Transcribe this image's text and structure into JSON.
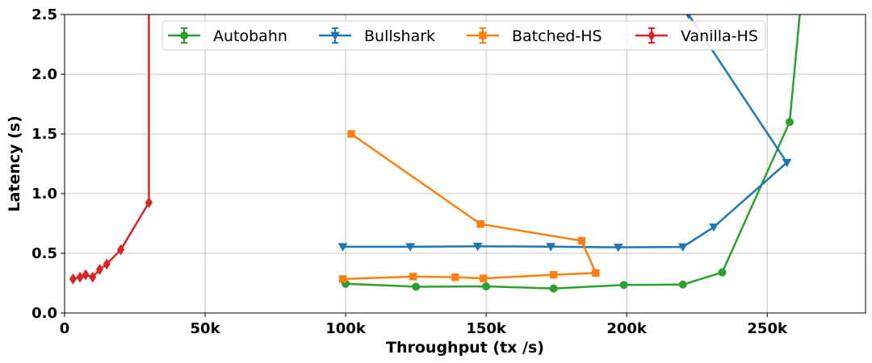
{
  "chart_data": {
    "type": "line",
    "xlabel": "Throughput (tx /s)",
    "ylabel": "Latency (s)",
    "xlim": [
      0,
      285000
    ],
    "ylim": [
      0,
      2.5
    ],
    "xticks": [
      0,
      50000,
      100000,
      150000,
      200000,
      250000
    ],
    "xtick_labels": [
      "0",
      "50k",
      "100k",
      "150k",
      "200k",
      "250k"
    ],
    "yticks": [
      0,
      0.5,
      1.0,
      1.5,
      2.0,
      2.5
    ],
    "ytick_labels": [
      "0.0",
      "0.5",
      "1.0",
      "1.5",
      "2.0",
      "2.5"
    ],
    "grid": true,
    "legend": {
      "position": "top-center",
      "columns": 4
    },
    "series": [
      {
        "name": "Autobahn",
        "color": "#2ca02c",
        "marker": "circle",
        "x": [
          100000,
          125000,
          150000,
          174000,
          199000,
          220000,
          234000,
          258000,
          262000
        ],
        "y": [
          0.245,
          0.22,
          0.223,
          0.205,
          0.235,
          0.238,
          0.34,
          1.6,
          2.6
        ]
      },
      {
        "name": "Bullshark",
        "color": "#1f77b4",
        "marker": "triangle-down",
        "x": [
          99000,
          123000,
          147000,
          173000,
          197000,
          220000,
          231000,
          257000,
          222000
        ],
        "y": [
          0.555,
          0.555,
          0.558,
          0.556,
          0.55,
          0.553,
          0.72,
          1.26,
          2.5
        ]
      },
      {
        "name": "Batched-HS",
        "color": "#ff7f0e",
        "marker": "square",
        "x": [
          99000,
          124000,
          139000,
          149000,
          174000,
          189000,
          184000,
          148000,
          102000
        ],
        "y": [
          0.285,
          0.305,
          0.3,
          0.29,
          0.32,
          0.335,
          0.605,
          0.745,
          1.5
        ]
      },
      {
        "name": "Vanilla-HS",
        "color": "#d62728",
        "marker": "diamond",
        "x": [
          3000,
          5500,
          7500,
          10000,
          12500,
          15000,
          20000,
          30000,
          30000
        ],
        "y": [
          0.285,
          0.3,
          0.32,
          0.3,
          0.365,
          0.41,
          0.53,
          0.925,
          2.6
        ]
      }
    ]
  }
}
